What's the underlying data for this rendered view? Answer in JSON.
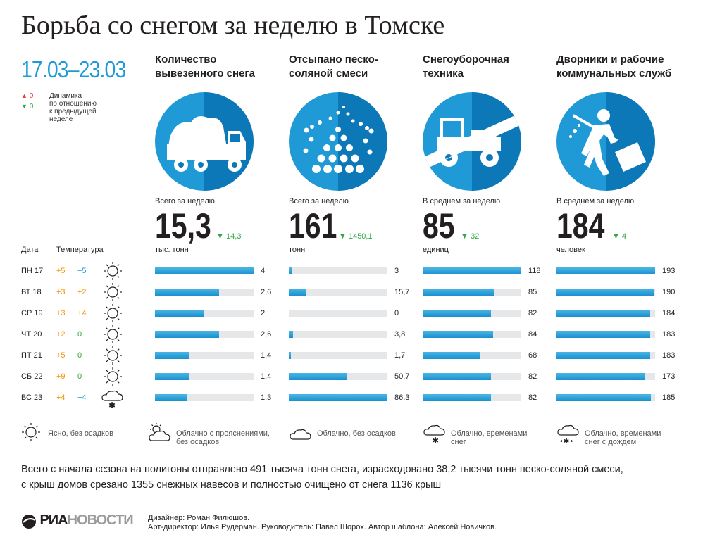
{
  "title": "Борьба со снегом за неделю в Томске",
  "period": "17.03–23.03",
  "legend": {
    "up_value": "0",
    "down_value": "0",
    "lines": [
      "Динамика",
      "по отношению",
      "к предыдущей",
      "неделе"
    ]
  },
  "table_header": {
    "date": "Дата",
    "temp": "Температура"
  },
  "days": [
    {
      "label": "ПН 17",
      "t1": "+5",
      "t2": "−5",
      "weather": "sun"
    },
    {
      "label": "ВТ 18",
      "t1": "+3",
      "t2": "+2",
      "weather": "sun"
    },
    {
      "label": "СР 19",
      "t1": "+3",
      "t2": "+4",
      "weather": "sun"
    },
    {
      "label": "ЧТ 20",
      "t1": "+2",
      "t2": "0",
      "weather": "sun"
    },
    {
      "label": "ПТ 21",
      "t1": "+5",
      "t2": "0",
      "weather": "sun"
    },
    {
      "label": "СБ 22",
      "t1": "+9",
      "t2": "0",
      "weather": "sun"
    },
    {
      "label": "ВС 23",
      "t1": "+4",
      "t2": "−4",
      "weather": "cloud-snow"
    }
  ],
  "columns": [
    {
      "title": [
        "Количество",
        "вывезенного снега"
      ],
      "icon": "dump-truck-icon",
      "sub": "Всего за неделю",
      "big": "15,3",
      "delta": "14,3",
      "unit": "тыс. тонн"
    },
    {
      "title": [
        "Отсыпано песко-",
        "соляной смеси"
      ],
      "icon": "sand-dots-icon",
      "sub": "Всего за неделю",
      "big": "161",
      "delta": "1450,1",
      "unit": "тонн"
    },
    {
      "title": [
        "Снегоуборочная",
        "техника"
      ],
      "icon": "snowplow-icon",
      "sub": "В среднем за неделю",
      "big": "85",
      "delta": "32",
      "unit": "единиц"
    },
    {
      "title": [
        "Дворники и рабочие",
        "коммунальных служб"
      ],
      "icon": "worker-shovel-icon",
      "sub": "В среднем за неделю",
      "big": "184",
      "delta": "4",
      "unit": "человек"
    }
  ],
  "weather_legend": [
    {
      "icon": "sun-icon",
      "text": [
        "Ясно, без осадков"
      ]
    },
    {
      "icon": "sun-cloud-icon",
      "text": [
        "Облачно с прояснениями,",
        "без осадков"
      ]
    },
    {
      "icon": "cloud-icon",
      "text": [
        "Облачно, без осадков"
      ]
    },
    {
      "icon": "cloud-snow-icon",
      "text": [
        "Облачно, временами",
        "снег"
      ]
    },
    {
      "icon": "cloud-snow-rain-icon",
      "text": [
        "Облачно, временами",
        "снег с дождем"
      ]
    }
  ],
  "summary": [
    "Всего с начала сезона на полигоны отправлено 491 тысяча тонн снега, израсходовано 38,2 тысячи тонн песко-соляной смеси,",
    "с крыш домов срезано 1355 снежных навесов и полностью очищено от снега 1136 крыш"
  ],
  "logo": {
    "part1": "РИА",
    "part2": "НОВОСТИ"
  },
  "credits": [
    "Дизайнер: Роман Филюшов.",
    "Арт-директор: Илья Рудерман. Руководитель: Павел Шорох. Автор шаблона: Алексей Новичков."
  ],
  "colors": {
    "accent": "#1f9ad6",
    "dark_accent": "#0d78b8",
    "bar_track": "#e6e7e8",
    "orange": "#f39200",
    "green": "#30a843",
    "red": "#e8402a"
  },
  "chart_data": {
    "type": "bar",
    "categories": [
      "ПН 17",
      "ВТ 18",
      "СР 19",
      "ЧТ 20",
      "ПТ 21",
      "СБ 22",
      "ВС 23"
    ],
    "series": [
      {
        "name": "Количество вывезенного снега",
        "unit": "тыс. тонн",
        "values": [
          4,
          2.6,
          2,
          2.6,
          1.4,
          1.4,
          1.3
        ],
        "labels": [
          "4",
          "2,6",
          "2",
          "2,6",
          "1,4",
          "1,4",
          "1,3"
        ],
        "max": 4
      },
      {
        "name": "Отсыпано песко-соляной смеси",
        "unit": "тонн",
        "values": [
          3,
          15.7,
          0,
          3.8,
          1.7,
          50.7,
          86.3
        ],
        "labels": [
          "3",
          "15,7",
          "0",
          "3,8",
          "1,7",
          "50,7",
          "86,3"
        ],
        "max": 86.3
      },
      {
        "name": "Снегоуборочная техника",
        "unit": "единиц",
        "values": [
          118,
          85,
          82,
          84,
          68,
          82,
          82
        ],
        "labels": [
          "118",
          "85",
          "82",
          "84",
          "68",
          "82",
          "82"
        ],
        "max": 118
      },
      {
        "name": "Дворники и рабочие коммунальных служб",
        "unit": "человек",
        "values": [
          193,
          190,
          184,
          183,
          183,
          173,
          185
        ],
        "labels": [
          "193",
          "190",
          "184",
          "183",
          "183",
          "173",
          "185"
        ],
        "max": 193
      }
    ]
  }
}
